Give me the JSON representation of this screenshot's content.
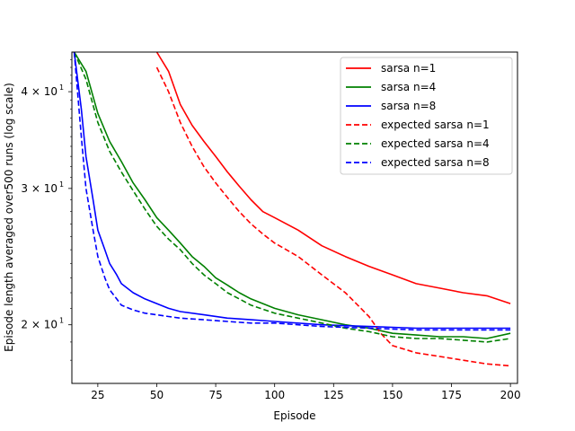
{
  "chart_data": {
    "type": "line",
    "title": "",
    "xlabel": "Episode",
    "ylabel": "Episode length averaged over500 runs (log scale)",
    "xlim": [
      14,
      203
    ],
    "ylim": [
      16.8,
      45
    ],
    "yscale": "log",
    "x_ticks": [
      25,
      50,
      75,
      100,
      125,
      150,
      175,
      200
    ],
    "y_ticks": [
      {
        "value": 20,
        "label_base": "2 × 10",
        "label_exp": "1"
      },
      {
        "value": 30,
        "label_base": "3 × 10",
        "label_exp": "1"
      },
      {
        "value": 40,
        "label_base": "4 × 10",
        "label_exp": "1"
      }
    ],
    "grid": false,
    "legend_position": "top-right",
    "series": [
      {
        "name": "sarsa n=1",
        "color": "#ff0000",
        "dash": "solid",
        "x": [
          50,
          55,
          60,
          65,
          70,
          75,
          80,
          85,
          90,
          95,
          100,
          110,
          120,
          130,
          140,
          150,
          160,
          170,
          180,
          190,
          200
        ],
        "y": [
          45,
          42.5,
          38.5,
          36.2,
          34.5,
          33,
          31.5,
          30.2,
          29,
          28,
          27.5,
          26.5,
          25.3,
          24.5,
          23.8,
          23.2,
          22.6,
          22.3,
          22.0,
          21.8,
          21.3
        ]
      },
      {
        "name": "sarsa n=4",
        "color": "#008000",
        "dash": "solid",
        "x": [
          15,
          20,
          25,
          30,
          35,
          40,
          45,
          50,
          55,
          60,
          65,
          70,
          75,
          80,
          85,
          90,
          100,
          110,
          120,
          130,
          140,
          150,
          160,
          170,
          180,
          190,
          200
        ],
        "y": [
          45,
          42.5,
          37.5,
          34.5,
          32.5,
          30.5,
          29,
          27.5,
          26.5,
          25.5,
          24.5,
          23.8,
          23.0,
          22.5,
          22.0,
          21.6,
          21.0,
          20.6,
          20.3,
          20.0,
          19.8,
          19.5,
          19.4,
          19.3,
          19.3,
          19.2,
          19.5
        ]
      },
      {
        "name": "sarsa n=8",
        "color": "#0000ff",
        "dash": "solid",
        "x": [
          15,
          18,
          20,
          23,
          25,
          28,
          30,
          33,
          35,
          40,
          45,
          50,
          55,
          60,
          70,
          80,
          90,
          100,
          120,
          140,
          160,
          180,
          200
        ],
        "y": [
          45,
          38,
          33,
          29,
          26.5,
          25,
          24,
          23.2,
          22.6,
          22.0,
          21.6,
          21.3,
          21.0,
          20.8,
          20.6,
          20.4,
          20.3,
          20.2,
          20.0,
          19.9,
          19.8,
          19.8,
          19.8
        ]
      },
      {
        "name": "expected sarsa n=1",
        "color": "#ff0000",
        "dash": "dashed",
        "x": [
          50,
          55,
          60,
          65,
          70,
          75,
          80,
          85,
          90,
          95,
          100,
          110,
          120,
          130,
          140,
          145,
          150,
          160,
          170,
          180,
          190,
          200
        ],
        "y": [
          43,
          40,
          36.5,
          34,
          32,
          30.5,
          29.2,
          28,
          27,
          26.2,
          25.5,
          24.5,
          23.2,
          22,
          20.5,
          19.5,
          18.8,
          18.4,
          18.2,
          18.0,
          17.8,
          17.7
        ]
      },
      {
        "name": "expected sarsa n=4",
        "color": "#008000",
        "dash": "dashed",
        "x": [
          15,
          20,
          25,
          30,
          35,
          40,
          45,
          50,
          55,
          60,
          65,
          70,
          75,
          80,
          85,
          90,
          100,
          110,
          120,
          130,
          140,
          150,
          160,
          170,
          180,
          190,
          200
        ],
        "y": [
          45,
          41.5,
          36.5,
          33.5,
          31.5,
          29.8,
          28.2,
          26.8,
          25.8,
          25.0,
          24.0,
          23.2,
          22.6,
          22.0,
          21.6,
          21.2,
          20.7,
          20.4,
          20.1,
          19.8,
          19.6,
          19.3,
          19.2,
          19.2,
          19.1,
          19.0,
          19.2
        ]
      },
      {
        "name": "expected sarsa n=8",
        "color": "#0000ff",
        "dash": "dashed",
        "x": [
          15,
          18,
          20,
          23,
          25,
          28,
          30,
          33,
          35,
          40,
          45,
          50,
          55,
          60,
          70,
          80,
          90,
          100,
          120,
          140,
          160,
          180,
          200
        ],
        "y": [
          45,
          35,
          30,
          26.5,
          24.5,
          23,
          22.2,
          21.6,
          21.2,
          20.9,
          20.7,
          20.6,
          20.5,
          20.4,
          20.3,
          20.2,
          20.1,
          20.1,
          19.9,
          19.8,
          19.7,
          19.7,
          19.7
        ]
      }
    ]
  }
}
